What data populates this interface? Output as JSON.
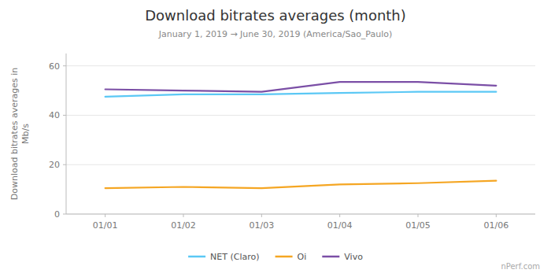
{
  "chart_data": {
    "type": "line",
    "title": "Download bitrates averages (month)",
    "subtitle": "January 1, 2019 → June 30, 2019 (America/Sao_Paulo)",
    "ylabel": "Download bitrates averages in\nMb/s",
    "categories": [
      "01/01",
      "01/02",
      "01/03",
      "01/04",
      "01/05",
      "01/06"
    ],
    "series": [
      {
        "name": "NET (Claro)",
        "color": "#5bc8f5",
        "values": [
          47.5,
          48.5,
          48.5,
          49.0,
          49.5,
          49.5
        ]
      },
      {
        "name": "Oi",
        "color": "#f5a623",
        "values": [
          10.5,
          11.0,
          10.5,
          12.0,
          12.5,
          13.5
        ]
      },
      {
        "name": "Vivo",
        "color": "#7b4fa6",
        "values": [
          50.5,
          50.0,
          49.5,
          53.5,
          53.5,
          52.0
        ]
      }
    ],
    "ylim": [
      0,
      65
    ],
    "yticks": [
      0,
      20,
      40,
      60
    ],
    "grid": true,
    "legend": "bottom",
    "annotations": [
      "nPerf.com"
    ]
  }
}
